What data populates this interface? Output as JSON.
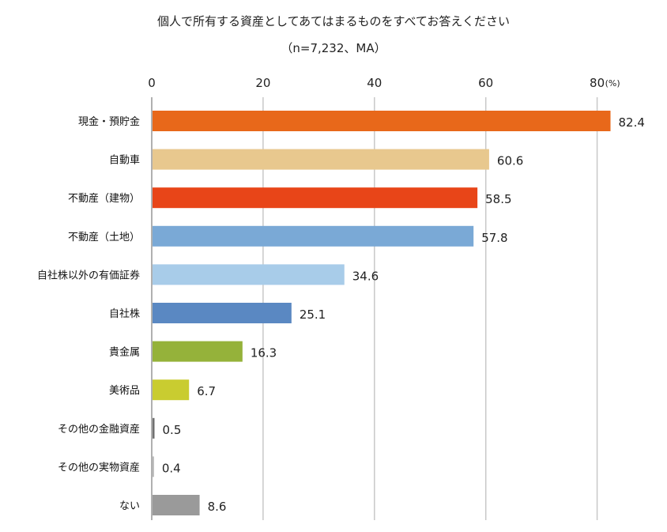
{
  "chart_data": {
    "type": "bar",
    "orientation": "horizontal",
    "title": "個人で所有する資産としてあてはまるものをすべてお答えください",
    "subtitle": "（n=7,232、MA）",
    "unit": "(%)",
    "xlim": [
      0,
      80
    ],
    "ticks": [
      "0",
      "20",
      "40",
      "60",
      "80"
    ],
    "tick_values": [
      0,
      20,
      40,
      60,
      80
    ],
    "grid": true,
    "categories": [
      "現金・預貯金",
      "自動車",
      "不動産（建物）",
      "不動産（土地）",
      "自社株以外の有価証券",
      "自社株",
      "貴金属",
      "美術品",
      "その他の金融資産",
      "その他の実物資産",
      "ない"
    ],
    "values": [
      82.4,
      60.6,
      58.5,
      57.8,
      34.6,
      25.1,
      16.3,
      6.7,
      0.5,
      0.4,
      8.6
    ],
    "value_labels": [
      "82.4",
      "60.6",
      "58.5",
      "57.8",
      "34.6",
      "25.1",
      "16.3",
      "6.7",
      "0.5",
      "0.4",
      "8.6"
    ],
    "colors": [
      "#e8681a",
      "#e8c88e",
      "#e84518",
      "#7aa9d6",
      "#a8cce9",
      "#5a88c2",
      "#95b23a",
      "#c9cc30",
      "#707070",
      "#b8b8b8",
      "#9a9a9a"
    ]
  }
}
